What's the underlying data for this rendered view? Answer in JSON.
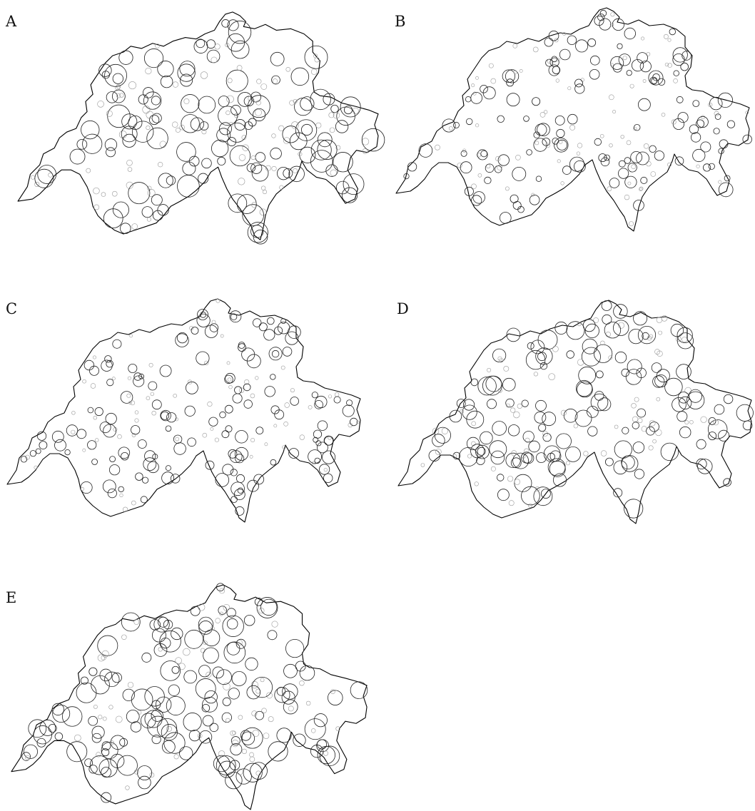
{
  "colors": {
    "outline": "#000000",
    "circle_dark": "#222222",
    "circle_light": "#9a9a9a",
    "background": "#ffffff"
  },
  "panels": [
    {
      "label": "A"
    },
    {
      "label": "B"
    },
    {
      "label": "C"
    },
    {
      "label": "D"
    },
    {
      "label": "E"
    }
  ]
}
